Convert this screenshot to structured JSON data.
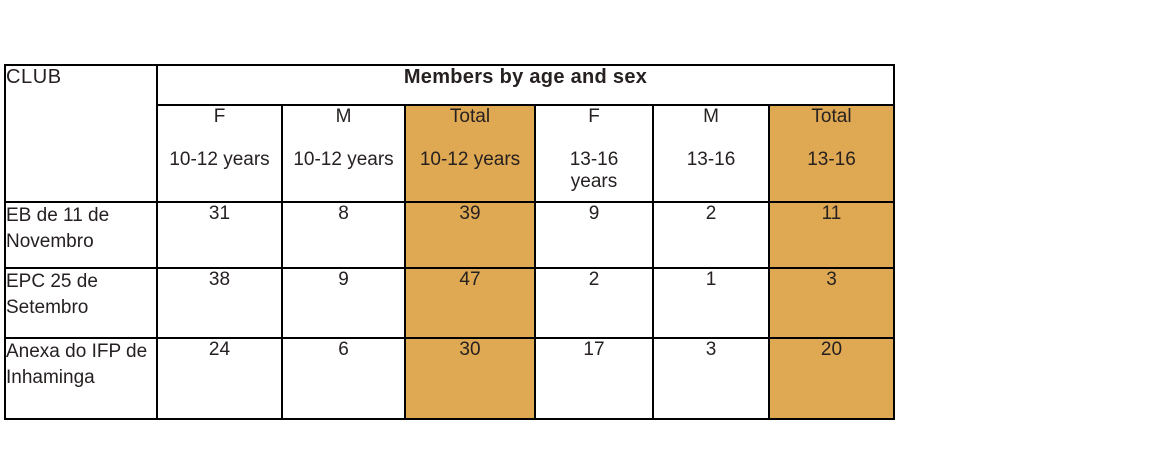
{
  "page": {
    "background": "#ffffff"
  },
  "table": {
    "title": "Members by age and sex",
    "club_header": "CLUB",
    "columns": [
      {
        "sex": "F",
        "age": "10-12 years",
        "highlight": false
      },
      {
        "sex": "M",
        "age": "10-12 years",
        "highlight": false
      },
      {
        "sex": "Total",
        "age": "10-12 years",
        "highlight": true
      },
      {
        "sex": "F",
        "age": "13-16 years",
        "highlight": false
      },
      {
        "sex": "M",
        "age": "13-16",
        "highlight": false
      },
      {
        "sex": "Total",
        "age": "13-16",
        "highlight": true
      }
    ],
    "rows": [
      {
        "club": "EB de 11 de Novembro",
        "values": [
          31,
          8,
          39,
          9,
          2,
          11
        ]
      },
      {
        "club": "EPC 25 de Setembro",
        "values": [
          38,
          9,
          47,
          2,
          1,
          3
        ]
      },
      {
        "club": "Anexa do IFP de Inhaminga",
        "values": [
          24,
          6,
          30,
          17,
          3,
          20
        ]
      }
    ],
    "colors": {
      "highlight": "#DFA853",
      "border": "#000000",
      "text": "#262120"
    }
  },
  "chart_data": {
    "type": "table",
    "title": "Members by age and sex",
    "row_label_header": "CLUB",
    "columns": [
      "F 10-12 years",
      "M 10-12 years",
      "Total 10-12 years",
      "F 13-16 years",
      "M 13-16",
      "Total 13-16"
    ],
    "highlighted_columns": [
      "Total 10-12 years",
      "Total 13-16"
    ],
    "rows": [
      {
        "club": "EB de 11 de Novembro",
        "F_10_12": 31,
        "M_10_12": 8,
        "Total_10_12": 39,
        "F_13_16": 9,
        "M_13_16": 2,
        "Total_13_16": 11
      },
      {
        "club": "EPC 25 de Setembro",
        "F_10_12": 38,
        "M_10_12": 9,
        "Total_10_12": 47,
        "F_13_16": 2,
        "M_13_16": 1,
        "Total_13_16": 3
      },
      {
        "club": "Anexa do IFP de Inhaminga",
        "F_10_12": 24,
        "M_10_12": 6,
        "Total_10_12": 30,
        "F_13_16": 17,
        "M_13_16": 3,
        "Total_13_16": 20
      }
    ]
  }
}
